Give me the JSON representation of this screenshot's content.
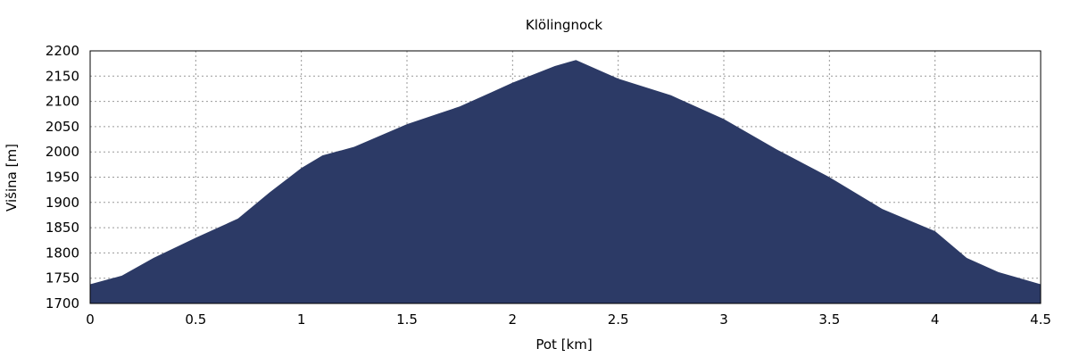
{
  "chart_data": {
    "type": "area",
    "title": "Klölingnock",
    "xlabel": "Pot [km]",
    "ylabel": "Višina [m]",
    "xlim": [
      0,
      4.5
    ],
    "ylim": [
      1700,
      2200
    ],
    "xticks": [
      "0",
      "0.5",
      "1",
      "1.5",
      "2",
      "2.5",
      "3",
      "3.5",
      "4",
      "4.5"
    ],
    "yticks": [
      "1700",
      "1750",
      "1800",
      "1850",
      "1900",
      "1950",
      "2000",
      "2050",
      "2100",
      "2150",
      "2200"
    ],
    "grid": true,
    "fill_color": "#2c3a66",
    "x": [
      0,
      0.15,
      0.3,
      0.5,
      0.7,
      0.85,
      1.0,
      1.1,
      1.25,
      1.5,
      1.75,
      1.9,
      2.0,
      2.2,
      2.3,
      2.5,
      2.75,
      3.0,
      3.25,
      3.5,
      3.75,
      4.0,
      4.15,
      4.3,
      4.5
    ],
    "y": [
      1738,
      1755,
      1790,
      1830,
      1868,
      1920,
      1968,
      1993,
      2010,
      2055,
      2090,
      2118,
      2137,
      2170,
      2182,
      2145,
      2112,
      2065,
      2005,
      1950,
      1887,
      1843,
      1790,
      1762,
      1738
    ]
  }
}
